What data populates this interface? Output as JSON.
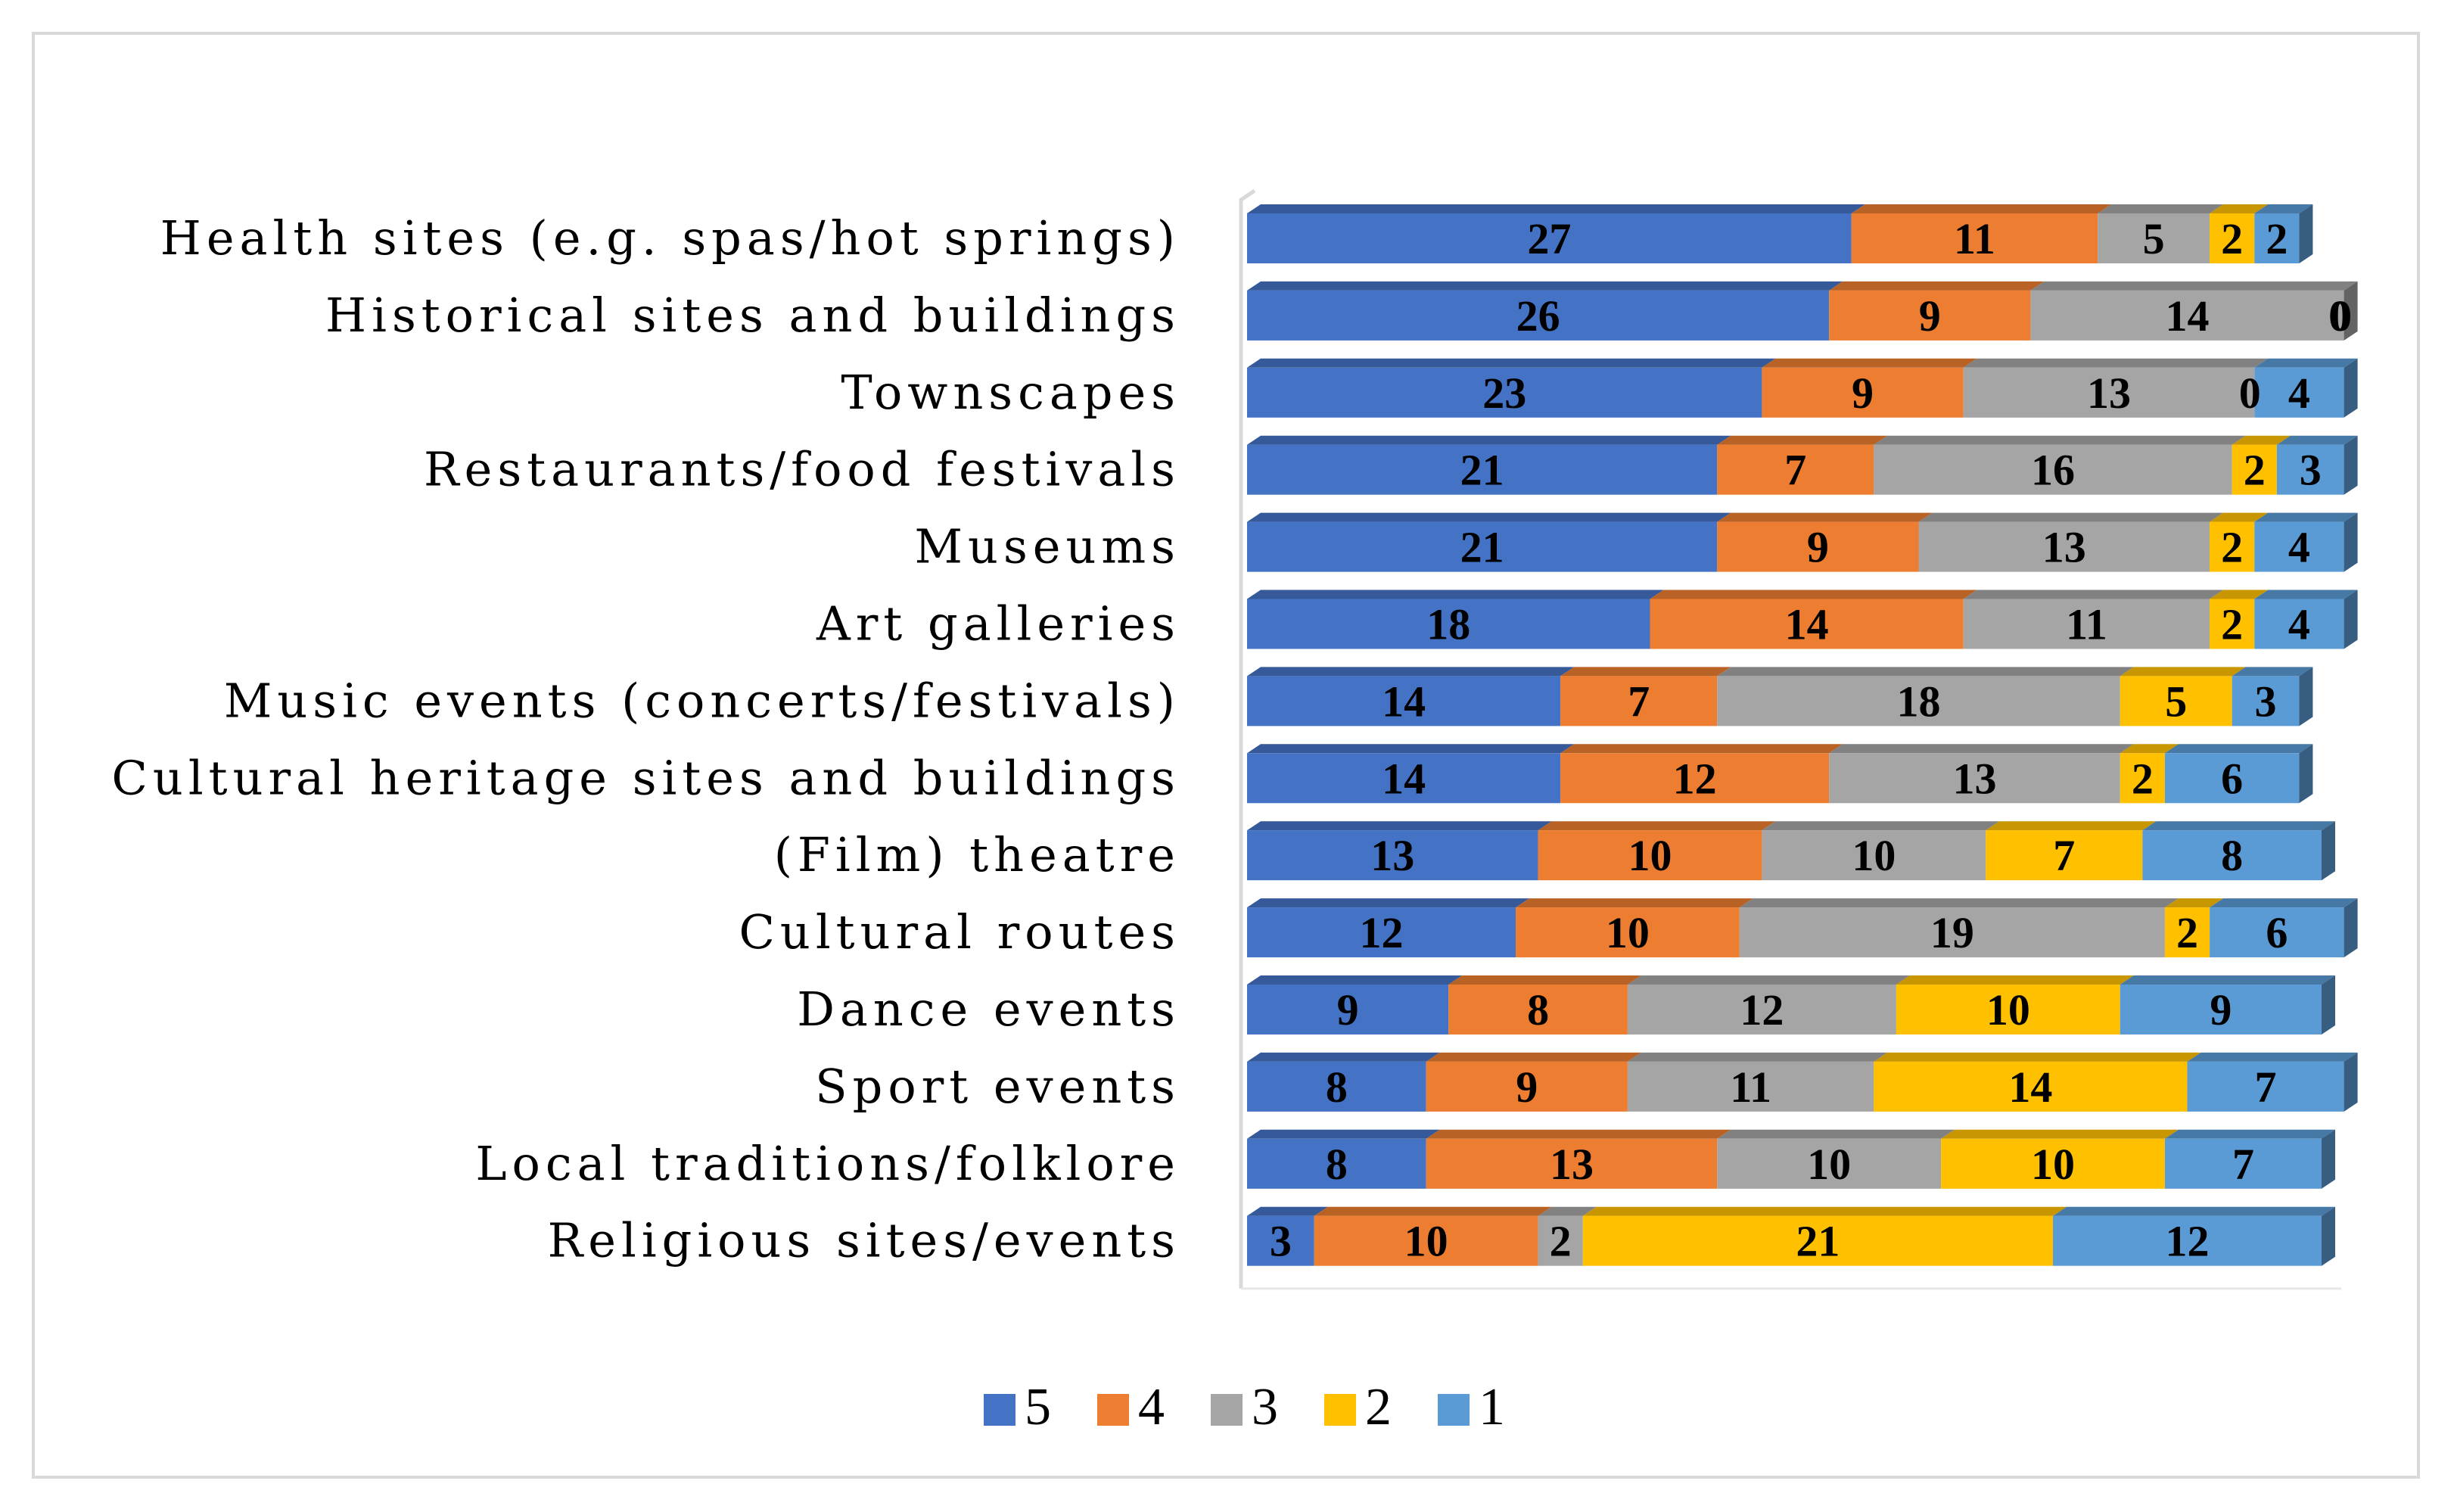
{
  "chart_data": {
    "type": "bar",
    "orientation": "horizontal",
    "stacked": true,
    "title": "",
    "xlabel": "",
    "ylabel": "",
    "categories": [
      "Health sites (e.g. spas/hot springs)",
      "Historical sites and buildings",
      "Townscapes",
      "Restaurants/food festivals",
      "Museums",
      "Art galleries",
      "Music events (concerts/festivals)",
      "Cultural heritage sites and buildings",
      "(Film) theatre",
      "Cultural routes",
      "Dance events",
      "Sport events",
      "Local traditions/folklore",
      "Religious sites/events"
    ],
    "series": [
      {
        "name": "5",
        "color": "#4472C4",
        "values": [
          27,
          26,
          23,
          21,
          21,
          18,
          14,
          14,
          13,
          12,
          9,
          8,
          8,
          3
        ]
      },
      {
        "name": "4",
        "color": "#ED7D31",
        "values": [
          11,
          9,
          9,
          7,
          9,
          14,
          7,
          12,
          10,
          10,
          8,
          9,
          13,
          10
        ]
      },
      {
        "name": "3",
        "color": "#A5A5A5",
        "values": [
          5,
          14,
          13,
          16,
          13,
          11,
          18,
          13,
          10,
          19,
          12,
          11,
          10,
          2
        ]
      },
      {
        "name": "2",
        "color": "#FFC000",
        "values": [
          2,
          0,
          0,
          2,
          2,
          2,
          5,
          2,
          7,
          2,
          10,
          14,
          10,
          21
        ]
      },
      {
        "name": "1",
        "color": "#5B9BD5",
        "values": [
          2,
          0,
          4,
          3,
          4,
          4,
          3,
          6,
          8,
          6,
          9,
          7,
          7,
          12
        ]
      }
    ],
    "xlim": [
      0,
      48
    ],
    "legend_position": "bottom",
    "grid": false
  }
}
